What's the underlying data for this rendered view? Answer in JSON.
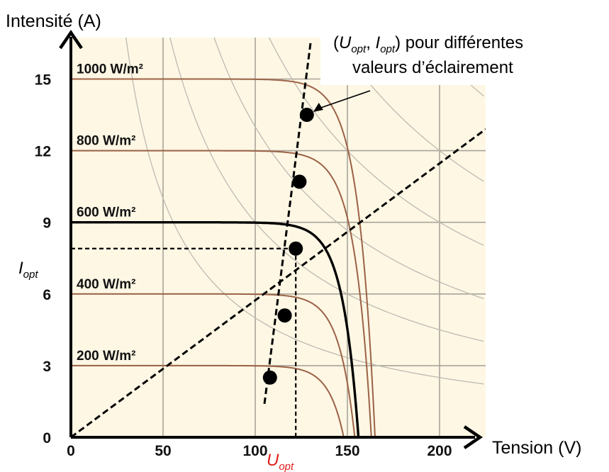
{
  "chart_data": {
    "type": "line",
    "xlabel": "Tension (V)",
    "ylabel": "Intensité (A)",
    "xlim": [
      0,
      225
    ],
    "ylim": [
      0,
      16.5
    ],
    "x_ticks": [
      0,
      50,
      100,
      150,
      200
    ],
    "y_ticks": [
      0,
      3,
      6,
      9,
      12,
      15
    ],
    "grid": true,
    "background_color": "#fdf7e4",
    "curve_color": "#9c6246",
    "highlight_curve_color": "#000000",
    "series": [
      {
        "name": "1000 W/m²",
        "isc": 15,
        "voc": 165,
        "highlight": false
      },
      {
        "name": "800 W/m²",
        "isc": 12,
        "voc": 163,
        "highlight": false
      },
      {
        "name": "600 W/m²",
        "isc": 9,
        "voc": 156,
        "highlight": true
      },
      {
        "name": "400 W/m²",
        "isc": 6,
        "voc": 154,
        "highlight": false
      },
      {
        "name": "200 W/m²",
        "isc": 3,
        "voc": 148,
        "highlight": false
      }
    ],
    "optimal_points": [
      {
        "x": 108,
        "y": 2.5
      },
      {
        "x": 116,
        "y": 5.1
      },
      {
        "x": 122,
        "y": 7.9
      },
      {
        "x": 124,
        "y": 10.7
      },
      {
        "x": 128,
        "y": 13.5
      }
    ],
    "mpp_line": [
      [
        105,
        1.4
      ],
      [
        130,
        16.5
      ]
    ],
    "load_line": [
      [
        0,
        0
      ],
      [
        225,
        12.9
      ]
    ],
    "u_opt_value": 122,
    "i_opt_value": 7.9,
    "hyperbola_constants": [
      500,
      900,
      1300,
      1800,
      2400,
      3200
    ],
    "annotation": {
      "text_line1_open": "(",
      "u_symbol": "U",
      "u_sub": "opt",
      "comma": ", ",
      "i_symbol": "I",
      "i_sub": "opt",
      "text_line1_close": ") pour différentes",
      "text_line2": "valeurs d’éclairement",
      "arrow_target_index": 4
    },
    "u_opt_label": {
      "symbol": "U",
      "sub": "opt",
      "color": "#e0201b"
    },
    "i_opt_label": {
      "symbol": "I",
      "sub": "opt"
    }
  }
}
